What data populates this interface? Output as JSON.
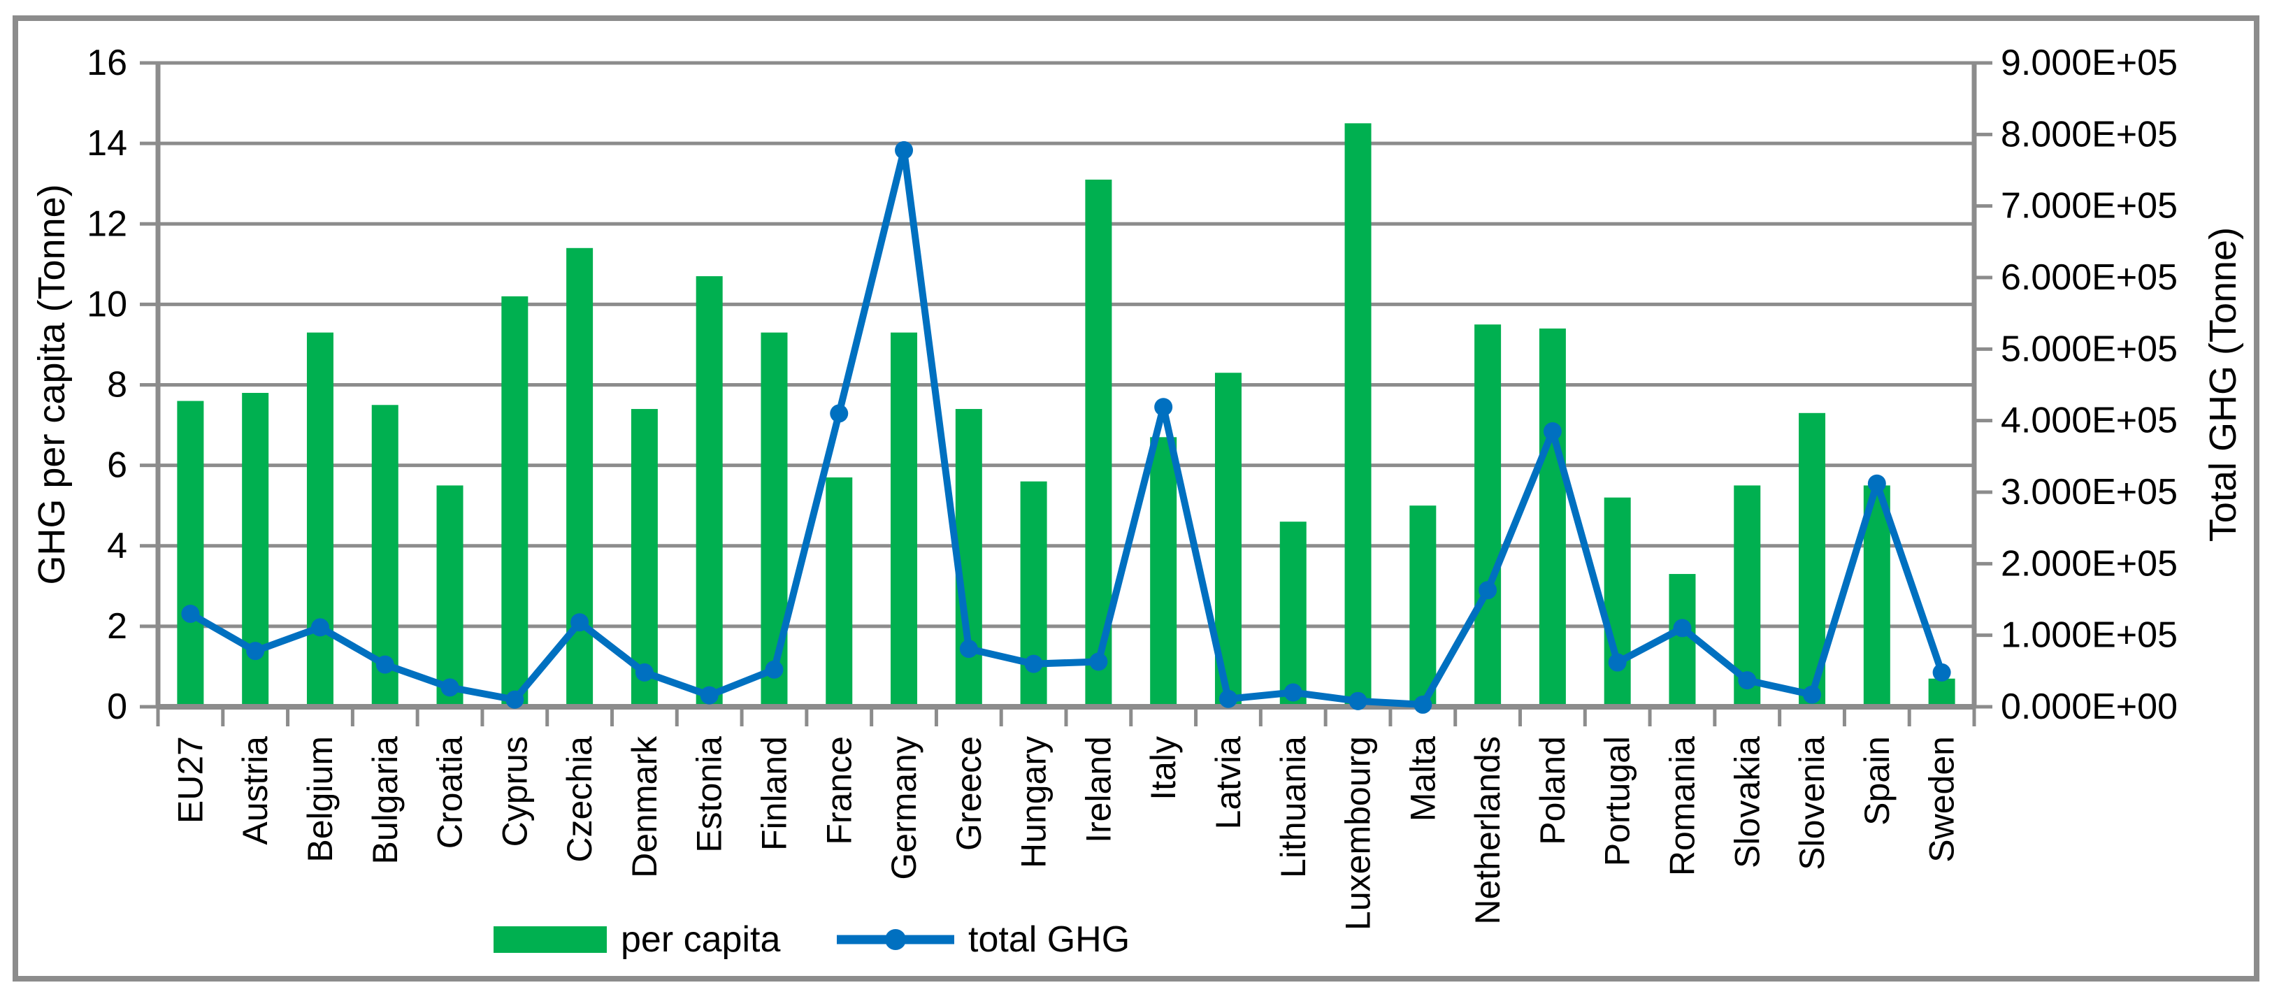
{
  "figure": {
    "background": "#FFFFFF",
    "border_color": "#8C8C8C"
  },
  "chart_data": {
    "type": "bar",
    "combo": "bar + line, dual y-axis",
    "categories": [
      "EU27",
      "Austria",
      "Belgium",
      "Bulgaria",
      "Croatia",
      "Cyprus",
      "Czechia",
      "Denmark",
      "Estonia",
      "Finland",
      "France",
      "Germany",
      "Greece",
      "Hungary",
      "Ireland",
      "Italy",
      "Latvia",
      "Lithuania",
      "Luxembourg",
      "Malta",
      "Netherlands",
      "Poland",
      "Portugal",
      "Romania",
      "Slovakia",
      "Slovenia",
      "Spain",
      "Sweden"
    ],
    "series": [
      {
        "name": "per capita",
        "type": "bar",
        "axis": "left",
        "color": "#00B050",
        "values": [
          7.6,
          7.8,
          9.3,
          7.5,
          5.5,
          10.2,
          11.4,
          7.4,
          10.7,
          9.3,
          5.7,
          9.3,
          7.4,
          5.6,
          13.1,
          6.7,
          8.3,
          4.6,
          14.5,
          5.0,
          9.5,
          9.4,
          5.2,
          3.3,
          5.5,
          7.3,
          5.5,
          0.7
        ]
      },
      {
        "name": "total GHG",
        "type": "line",
        "axis": "right",
        "color": "#0070C0",
        "values": [
          130000,
          78000,
          111000,
          59000,
          27000,
          10000,
          118000,
          48000,
          16000,
          52000,
          410000,
          778000,
          81000,
          60000,
          63000,
          419000,
          11000,
          20000,
          8000,
          3000,
          163000,
          385000,
          62000,
          110000,
          37000,
          17000,
          312000,
          48000
        ]
      }
    ],
    "left_axis": {
      "title": "GHG per capita  (Tonne)",
      "min": 0,
      "max": 16,
      "tick_step": 2,
      "tick_labels": [
        "0",
        "2",
        "4",
        "6",
        "8",
        "10",
        "12",
        "14",
        "16"
      ]
    },
    "right_axis": {
      "title": "Total GHG (Tonne)",
      "min": 0,
      "max": 900000,
      "tick_step": 100000,
      "tick_labels": [
        "0.000E+00",
        "1.000E+05",
        "2.000E+05",
        "3.000E+05",
        "4.000E+05",
        "5.000E+05",
        "6.000E+05",
        "7.000E+05",
        "8.000E+05",
        "9.000E+05"
      ]
    },
    "grid": true,
    "gridline_color": "#8C8C8C",
    "legend_position": "bottom",
    "legend_entries": [
      "per capita",
      "total GHG"
    ]
  }
}
